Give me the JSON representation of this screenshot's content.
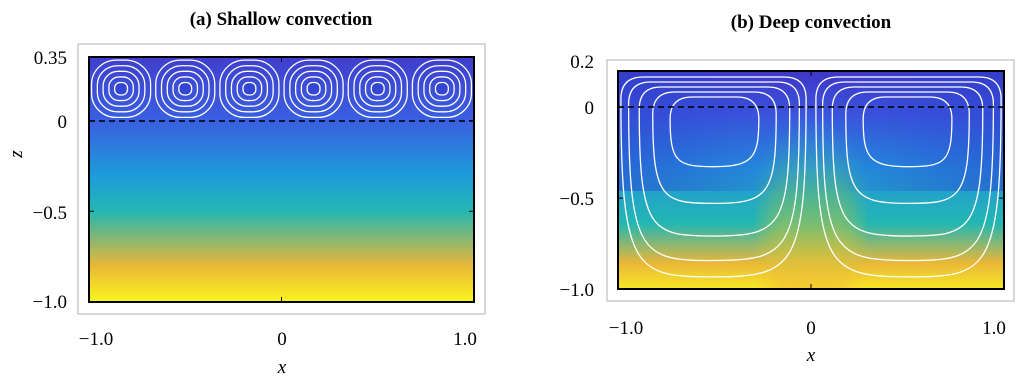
{
  "colors": {
    "colormap": [
      "#4030c0",
      "#3d52dd",
      "#3478e6",
      "#1aa0d8",
      "#1fb7b5",
      "#6cbf6a",
      "#c2bf42",
      "#f6b435",
      "#f6d92e",
      "#f8f51e"
    ],
    "streamline": "#ffffff",
    "interface": "#000000",
    "frame": "#000000"
  },
  "chart_data": [
    {
      "type": "heatmap",
      "title": "(a) Shallow convection",
      "xlabel": "x",
      "ylabel": "z",
      "xlim": [
        -1.0,
        1.0
      ],
      "ylim": [
        -1.0,
        0.35
      ],
      "xticks": [
        "−1.0",
        "0",
        "1.0"
      ],
      "yticks": [
        "0.35",
        "0",
        "−0.5",
        "−1.0"
      ],
      "xtick_values": [
        -1.0,
        0,
        1.0
      ],
      "ytick_values": [
        0.35,
        0,
        -0.5,
        -1.0
      ],
      "interface_z": 0,
      "cell_count": 6,
      "cell_z_range": [
        0,
        0.35
      ],
      "grid": false,
      "color_field": [
        {
          "z": 0.35,
          "level": 0.05
        },
        {
          "z": 0.0,
          "level": 0.15
        },
        {
          "z": -0.3,
          "level": 0.32
        },
        {
          "z": -0.5,
          "level": 0.45
        },
        {
          "z": -0.8,
          "level": 0.75
        },
        {
          "z": -1.0,
          "level": 1.0
        }
      ]
    },
    {
      "type": "heatmap",
      "title": "(b) Deep convection",
      "xlabel": "x",
      "ylabel": "",
      "xlim": [
        -1.0,
        1.0
      ],
      "ylim": [
        -1.0,
        0.2
      ],
      "xticks": [
        "−1.0",
        "0",
        "1.0"
      ],
      "yticks": [
        "0.2",
        "0",
        "−0.5",
        "−1.0"
      ],
      "xtick_values": [
        -1.0,
        0,
        1.0
      ],
      "ytick_values": [
        0.2,
        0,
        -0.5,
        -1.0
      ],
      "interface_z": 0,
      "cell_count": 2,
      "cell_z_range": [
        -1.0,
        0.2
      ],
      "grid": false
    }
  ]
}
